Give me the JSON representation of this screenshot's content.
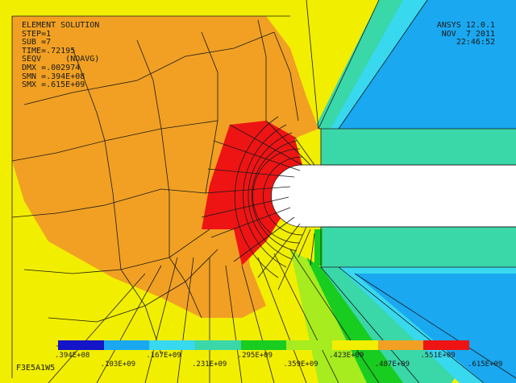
{
  "info": {
    "title": "ELEMENT SOLUTION",
    "step": "STEP=1",
    "sub": "SUB =7",
    "time": "TIME=.72195",
    "result": "SEQV     (NOAVG)",
    "dmx": "DMX =.002974",
    "smn": "SMN =.394E+08",
    "smx": "SMX =.615E+09"
  },
  "header_right": {
    "product": "ANSYS 12.0.1",
    "date": "NOV  7 2011",
    "time": "22:46:52"
  },
  "job_name": "F3E5A1W5",
  "legend": {
    "colors": [
      "#1414c8",
      "#1aa8f0",
      "#38d8ee",
      "#3ad7a8",
      "#18cc20",
      "#a6ec1e",
      "#f2ee00",
      "#f1a023",
      "#ee1414"
    ],
    "values_upper": [
      ".394E+08",
      ".167E+09",
      ".295E+09",
      ".423E+09",
      ".551E+09"
    ],
    "values_lower": [
      ".103E+09",
      ".231E+09",
      ".359E+09",
      ".487E+09",
      ".615E+09"
    ]
  },
  "palette": {
    "red": "#ee1414",
    "orange": "#f1a023",
    "yellow": "#f2ee00",
    "yellowgreen": "#a6ec1e",
    "green": "#18cc20",
    "turquoise": "#3ad7a8",
    "cyan": "#38d8ee",
    "lightblue": "#1aa8f0",
    "mesh_line": "#1a1a1a",
    "background": "#f2ee00"
  }
}
